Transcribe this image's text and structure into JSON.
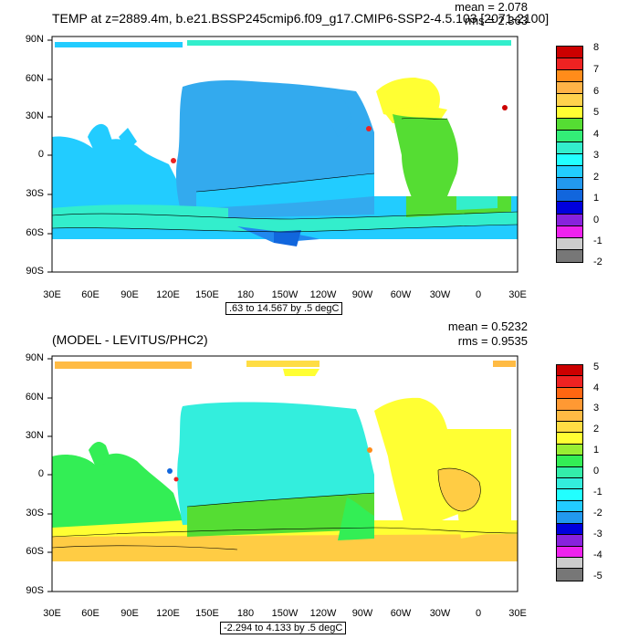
{
  "panels": [
    {
      "title": "TEMP at z=2889.4m, b.e21.BSSP245cmip6.f09_g17.CMIP6-SSP2-4.5.103 [2071-2100]",
      "mean": "mean = 2.078",
      "rms": "rms = 2.363",
      "range": ".63 to 14.567 by .5 degC",
      "lat_labels": [
        "90N",
        "60N",
        "30N",
        "0",
        "30S",
        "60S",
        "90S"
      ],
      "lon_labels": [
        "30E",
        "60E",
        "90E",
        "120E",
        "150E",
        "180",
        "150W",
        "120W",
        "90W",
        "60W",
        "30W",
        "0",
        "30E"
      ],
      "colorbar_labels": [
        "8",
        "7",
        "6",
        "5",
        "4",
        "3",
        "2",
        "1",
        "0",
        "-1",
        "-2"
      ],
      "colorbar_colors": [
        "#cc0000",
        "#ee2222",
        "#ff8c1a",
        "#ffb347",
        "#ffd24d",
        "#ffff33",
        "#55dd33",
        "#33ee77",
        "#33eecc",
        "#22ffff",
        "#22ccff",
        "#2299ee",
        "#1166dd",
        "#0000dd",
        "#8822dd",
        "#ee22ee",
        "#cccccc",
        "#777777"
      ]
    },
    {
      "title": "(MODEL - LEVITUS/PHC2)",
      "mean": "mean = 0.5232",
      "rms": "rms = 0.9535",
      "range": "-2.294 to 4.133 by .5 degC",
      "lat_labels": [
        "90N",
        "60N",
        "30N",
        "0",
        "30S",
        "60S",
        "90S"
      ],
      "lon_labels": [
        "30E",
        "60E",
        "90E",
        "120E",
        "150E",
        "180",
        "150W",
        "120W",
        "90W",
        "60W",
        "30W",
        "0",
        "30E"
      ],
      "colorbar_labels": [
        "5",
        "4",
        "3",
        "2",
        "1",
        "0",
        "-1",
        "-2",
        "-3",
        "-4",
        "-5"
      ],
      "colorbar_colors": [
        "#cc0000",
        "#ee2222",
        "#ff6611",
        "#ff9933",
        "#ffbb44",
        "#ffdd44",
        "#ffff33",
        "#99ee33",
        "#33ee55",
        "#33eeaa",
        "#33eedd",
        "#22ffff",
        "#22ccff",
        "#2299ee",
        "#0000dd",
        "#8822dd",
        "#ee22ee",
        "#cccccc",
        "#777777"
      ]
    }
  ],
  "map_colors": {
    "p1_ocean_main": "#22ccff",
    "p1_pacific": "#33aaee",
    "p1_atlantic_n": "#ffff33",
    "p1_atlantic_s": "#55dd33",
    "p1_south": "#33eecc",
    "p1_deep": "#2288ee",
    "p2_pacific": "#33eedd",
    "p2_indian": "#33ee55",
    "p2_atlantic": "#ffff33",
    "p2_south": "#ffcc44",
    "p2_arctic": "#ffbb44",
    "land": "#ffffff"
  }
}
